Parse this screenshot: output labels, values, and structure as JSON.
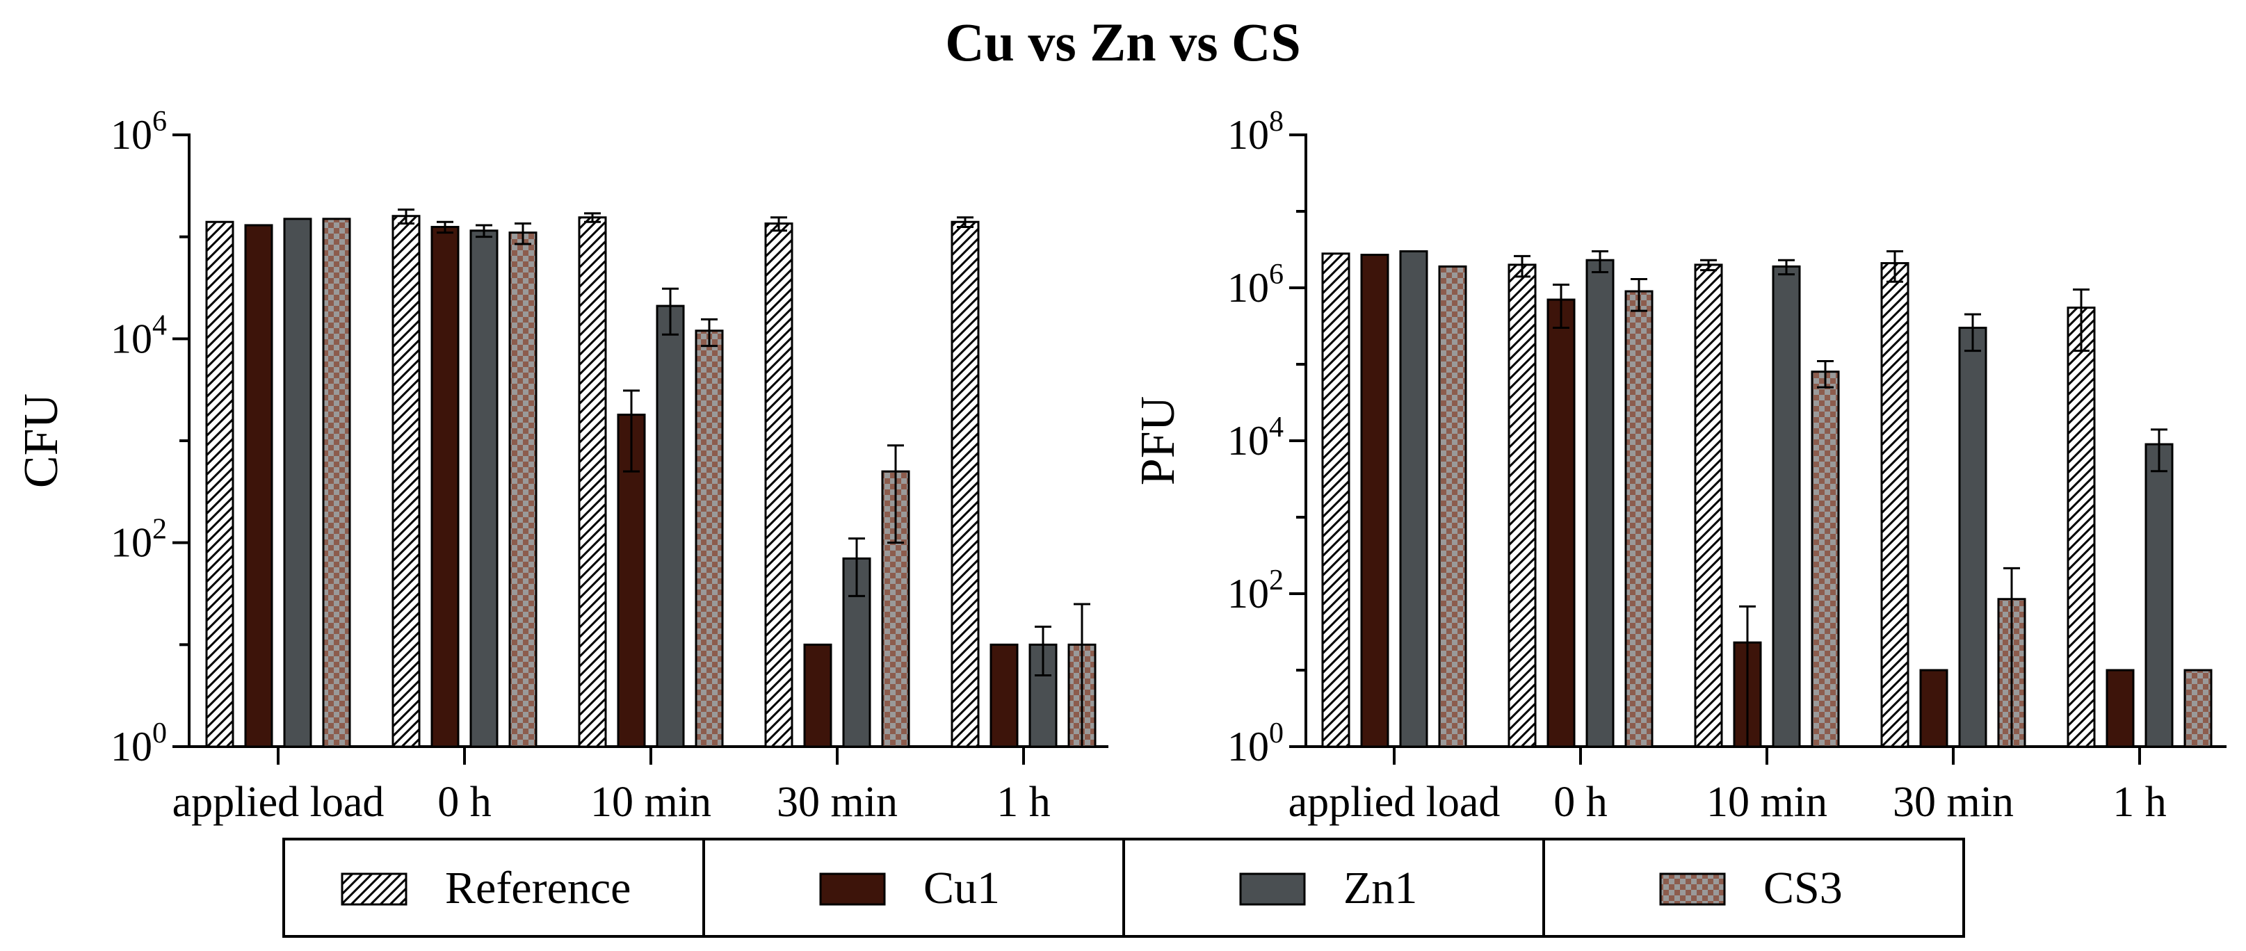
{
  "title": "Cu vs Zn vs CS",
  "series_styles": [
    {
      "fill": "hatch",
      "color": "#ffffff"
    },
    {
      "fill": "solid",
      "color": "#3d140a"
    },
    {
      "fill": "solid",
      "color": "#4a4f52"
    },
    {
      "fill": "checker",
      "color": "#8c5c4d"
    }
  ],
  "chart_data": [
    {
      "type": "bar",
      "title": "",
      "ylabel": "CFU",
      "xlabel": "",
      "yscale": "log",
      "ylim": [
        1,
        1000000
      ],
      "yticks": [
        {
          "value": 1,
          "base": "10",
          "exp": "0"
        },
        {
          "value": 100,
          "base": "10",
          "exp": "2"
        },
        {
          "value": 10000,
          "base": "10",
          "exp": "4"
        },
        {
          "value": 1000000,
          "base": "10",
          "exp": "6"
        }
      ],
      "categories": [
        "applied load",
        "0 h",
        "10 min",
        "30 min",
        "1 h"
      ],
      "series": [
        {
          "name": "Reference",
          "values": [
            140000,
            160000,
            155000,
            135000,
            140000
          ],
          "err": [
            null,
            25000,
            15000,
            20000,
            15000
          ]
        },
        {
          "name": "Cu1",
          "values": [
            130000,
            125000,
            1800,
            10,
            10
          ],
          "err": [
            null,
            15000,
            1300,
            null,
            null
          ]
        },
        {
          "name": "Zn1",
          "values": [
            150000,
            115000,
            21000,
            70,
            10
          ],
          "err": [
            null,
            15000,
            10000,
            40,
            5
          ]
        },
        {
          "name": "CS3",
          "values": [
            150000,
            110000,
            12000,
            500,
            10
          ],
          "err": [
            null,
            25000,
            3500,
            400,
            15
          ]
        }
      ]
    },
    {
      "type": "bar",
      "title": "",
      "ylabel": "PFU",
      "xlabel": "",
      "yscale": "log",
      "ylim": [
        1,
        100000000
      ],
      "yticks": [
        {
          "value": 1,
          "base": "10",
          "exp": "0"
        },
        {
          "value": 100,
          "base": "10",
          "exp": "2"
        },
        {
          "value": 10000,
          "base": "10",
          "exp": "4"
        },
        {
          "value": 1000000,
          "base": "10",
          "exp": "6"
        },
        {
          "value": 100000000,
          "base": "10",
          "exp": "8"
        }
      ],
      "categories": [
        "applied load",
        "0 h",
        "10 min",
        "30 min",
        "1 h"
      ],
      "series": [
        {
          "name": "Reference",
          "values": [
            2800000,
            2000000,
            2000000,
            2100000,
            550000
          ],
          "err": [
            null,
            600000,
            300000,
            900000,
            400000
          ]
        },
        {
          "name": "Cu1",
          "values": [
            2700000,
            700000,
            23,
            10,
            10
          ],
          "err": [
            null,
            400000,
            45,
            null,
            null
          ]
        },
        {
          "name": "Zn1",
          "values": [
            3000000,
            2300000,
            1900000,
            300000,
            9000
          ],
          "err": [
            null,
            700000,
            400000,
            150000,
            5000
          ]
        },
        {
          "name": "CS3",
          "values": [
            1900000,
            900000,
            80000,
            85,
            10
          ],
          "err": [
            null,
            400000,
            30000,
            130,
            null
          ]
        }
      ]
    }
  ],
  "legend": {
    "entries": [
      {
        "label": "Reference",
        "style": 0
      },
      {
        "label": "Cu1",
        "style": 1
      },
      {
        "label": "Zn1",
        "style": 2
      },
      {
        "label": "CS3",
        "style": 3
      }
    ]
  }
}
